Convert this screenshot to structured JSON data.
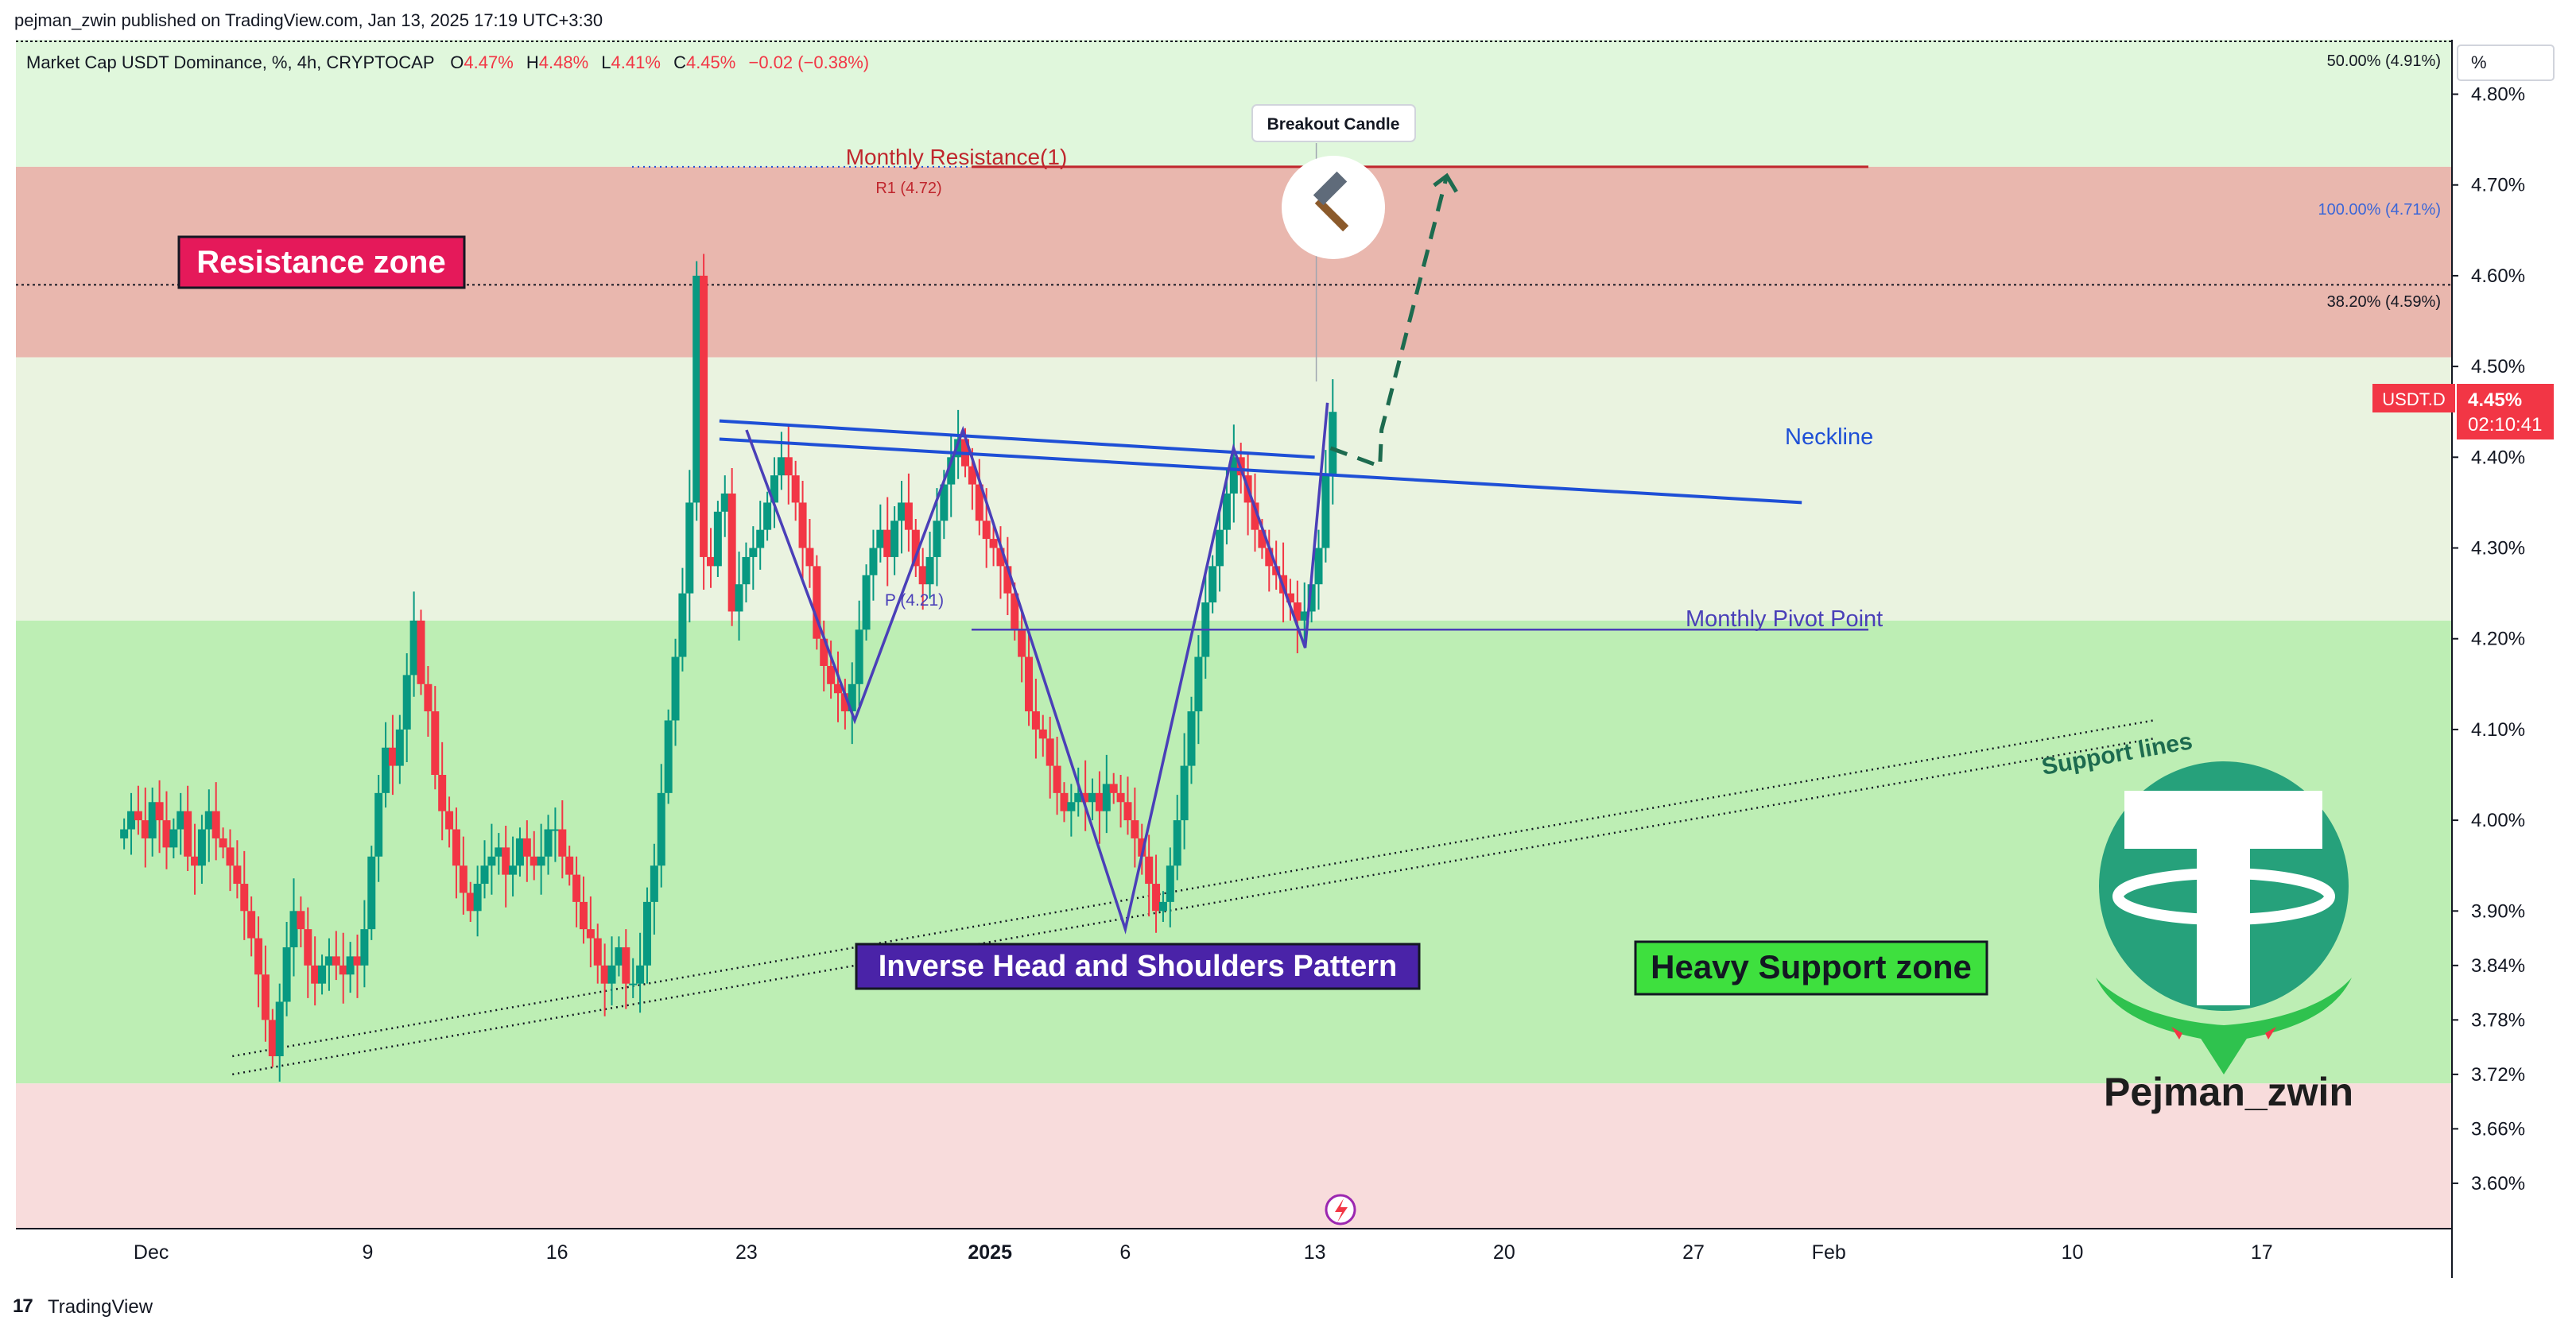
{
  "header": {
    "published": "pejman_zwin published on TradingView.com, Jan 13, 2025 17:19 UTC+3:30"
  },
  "legend": {
    "symbol": "Market Cap USDT Dominance, %, 4h, CRYPTOCAP",
    "o_label": "O",
    "o": "4.47%",
    "h_label": "H",
    "h": "4.48%",
    "l_label": "L",
    "l": "4.41%",
    "c_label": "C",
    "c": "4.45%",
    "change": "−0.02 (−0.38%)"
  },
  "footer": {
    "brand": "TradingView"
  },
  "colors": {
    "candle_up": "#089981",
    "candle_down": "#f23645",
    "resistance_band": "#e9b7ae",
    "green_band": "#bdeeb4",
    "upper_green": "#e0f7dc",
    "mid_band": "#eaf3e0",
    "lower_red": "#f8dcdc",
    "neckline": "#1e4fd6",
    "pattern": "#4a3fb8",
    "projection": "#1d6b4f"
  },
  "chart_data": {
    "type": "candlestick",
    "symbol": "USDT.D",
    "timeframe": "4h",
    "x_axis": {
      "ticks": [
        {
          "label": "Dec",
          "bold": false,
          "date": "2024-12-01"
        },
        {
          "label": "9",
          "bold": false,
          "date": "2024-12-09"
        },
        {
          "label": "16",
          "bold": false,
          "date": "2024-12-16"
        },
        {
          "label": "23",
          "bold": false,
          "date": "2024-12-23"
        },
        {
          "label": "2025",
          "bold": true,
          "date": "2025-01-01"
        },
        {
          "label": "6",
          "bold": false,
          "date": "2025-01-06"
        },
        {
          "label": "13",
          "bold": false,
          "date": "2025-01-13"
        },
        {
          "label": "20",
          "bold": false,
          "date": "2025-01-20"
        },
        {
          "label": "27",
          "bold": false,
          "date": "2025-01-27"
        },
        {
          "label": "Feb",
          "bold": false,
          "date": "2025-02-01"
        },
        {
          "label": "10",
          "bold": false,
          "date": "2025-02-10"
        },
        {
          "label": "17",
          "bold": false,
          "date": "2025-02-17"
        }
      ]
    },
    "y_axis": {
      "unit": "%",
      "ylim": [
        3.55,
        4.86
      ],
      "ticks": [
        "4.80%",
        "4.70%",
        "4.60%",
        "4.50%",
        "4.40%",
        "4.30%",
        "4.20%",
        "4.10%",
        "4.00%",
        "3.90%",
        "3.84%",
        "3.78%",
        "3.72%",
        "3.66%",
        "3.60%"
      ],
      "tick_values": [
        4.8,
        4.7,
        4.6,
        4.5,
        4.4,
        4.3,
        4.2,
        4.1,
        4.0,
        3.9,
        3.84,
        3.78,
        3.72,
        3.66,
        3.6
      ],
      "unit_button": "%",
      "price_label_symbol": "USDT.D",
      "price_label_value": "4.45%",
      "price_label_countdown": "02:10:41",
      "current_price": 4.45
    },
    "zones": [
      {
        "name": "Resistance zone",
        "from": 4.51,
        "to": 4.72,
        "color": "#e9b7ae"
      },
      {
        "name": "Heavy Support zone",
        "from": 3.71,
        "to": 4.22,
        "color": "#bdeeb4"
      }
    ],
    "fib_levels": [
      {
        "label": "50.00% (4.91%)",
        "value": 4.91
      },
      {
        "label": "100.00% (4.71%)",
        "value": 4.71
      },
      {
        "label": "38.20% (4.59%)",
        "value": 4.59
      }
    ],
    "pivots": [
      {
        "label": "R1 (4.72)",
        "value": 4.72
      },
      {
        "label": "P (4.21)",
        "value": 4.21
      }
    ],
    "annotations": {
      "monthly_resistance": "Monthly Resistance(1)",
      "resistance_zone": "Resistance zone",
      "breakout_candle": "Breakout Candle",
      "neckline": "Neckline",
      "monthly_pivot": "Monthly Pivot Point",
      "support_lines": "Support lines",
      "pattern": "Inverse Head and Shoulders Pattern",
      "support_zone": "Heavy Support zone",
      "author": "Pejman_zwin",
      "hammer_icon": "hammer-icon",
      "lightning_icon": "lightning-icon",
      "logo_icon": "tether-logo-icon"
    },
    "pattern_points": [
      {
        "date": "2024-12-23",
        "value": 4.43
      },
      {
        "date": "2024-12-27",
        "value": 4.11
      },
      {
        "date": "2024-12-31",
        "value": 4.43
      },
      {
        "date": "2025-01-06",
        "value": 3.88
      },
      {
        "date": "2025-01-10",
        "value": 4.41
      },
      {
        "date": "2025-01-13",
        "value": 4.19
      },
      {
        "date": "2025-01-13",
        "value": 4.46
      }
    ],
    "neckline": [
      {
        "from": {
          "date": "2024-12-22",
          "value": 4.44
        },
        "to": {
          "date": "2025-01-13",
          "value": 4.4
        }
      },
      {
        "from": {
          "date": "2024-12-22",
          "value": 4.42
        },
        "to": {
          "date": "2025-01-31",
          "value": 4.35
        }
      }
    ],
    "projection": [
      {
        "date": "2025-01-13",
        "value": 4.41
      },
      {
        "date": "2025-01-14",
        "value": 4.39
      },
      {
        "date": "2025-01-14",
        "value": 4.43
      },
      {
        "date": "2025-01-17",
        "value": 4.71
      }
    ],
    "support_trend": [
      {
        "from": {
          "date": "2024-12-04",
          "value": 3.72
        },
        "to": {
          "date": "2025-02-13",
          "value": 4.09
        }
      },
      {
        "from": {
          "date": "2024-12-04",
          "value": 3.74
        },
        "to": {
          "date": "2025-02-13",
          "value": 4.11
        }
      }
    ],
    "closes": [
      3.99,
      4.01,
      4.0,
      3.98,
      4.02,
      4.0,
      3.97,
      3.99,
      4.01,
      3.96,
      3.95,
      3.99,
      4.01,
      3.98,
      3.97,
      3.95,
      3.93,
      3.9,
      3.87,
      3.83,
      3.78,
      3.74,
      3.8,
      3.86,
      3.9,
      3.88,
      3.84,
      3.82,
      3.84,
      3.85,
      3.84,
      3.83,
      3.85,
      3.84,
      3.88,
      3.96,
      4.03,
      4.08,
      4.06,
      4.1,
      4.16,
      4.22,
      4.15,
      4.12,
      4.05,
      4.01,
      3.99,
      3.95,
      3.92,
      3.9,
      3.93,
      3.95,
      3.96,
      3.97,
      3.94,
      3.95,
      3.98,
      3.96,
      3.95,
      3.96,
      3.99,
      3.99,
      3.96,
      3.94,
      3.91,
      3.88,
      3.87,
      3.84,
      3.82,
      3.84,
      3.86,
      3.82,
      3.82,
      3.84,
      3.91,
      3.95,
      4.03,
      4.11,
      4.18,
      4.25,
      4.35,
      4.6,
      4.29,
      4.28,
      4.34,
      4.36,
      4.23,
      4.26,
      4.29,
      4.3,
      4.32,
      4.35,
      4.38,
      4.4,
      4.38,
      4.35,
      4.3,
      4.28,
      4.2,
      4.17,
      4.15,
      4.14,
      4.12,
      4.15,
      4.21,
      4.27,
      4.3,
      4.32,
      4.29,
      4.33,
      4.35,
      4.32,
      4.28,
      4.26,
      4.29,
      4.33,
      4.37,
      4.4,
      4.42,
      4.39,
      4.37,
      4.33,
      4.31,
      4.3,
      4.28,
      4.25,
      4.21,
      4.18,
      4.12,
      4.1,
      4.09,
      4.06,
      4.03,
      4.01,
      4.02,
      4.03,
      4.02,
      4.03,
      4.01,
      4.04,
      4.03,
      4.02,
      4.0,
      3.98,
      3.96,
      3.93,
      3.9,
      3.91,
      3.95,
      4.0,
      4.06,
      4.12,
      4.18,
      4.24,
      4.28,
      4.32,
      4.36,
      4.4,
      4.38,
      4.35,
      4.32,
      4.3,
      4.28,
      4.27,
      4.25,
      4.24,
      4.22,
      4.23,
      4.26,
      4.3,
      4.38,
      4.45
    ]
  }
}
